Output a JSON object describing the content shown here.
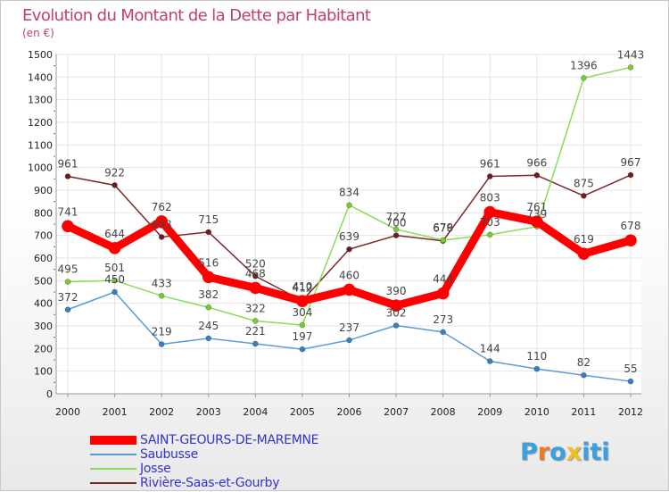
{
  "title": "Evolution du Montant de la Dette par Habitant",
  "subtitle": "(en €)",
  "logo_text": "Proxiti",
  "colors": {
    "title": "#c0406a",
    "text": "#222222",
    "grid": "#e4e4e4",
    "axis": "#999999",
    "legend_text": "#3333cc"
  },
  "chart_data": {
    "type": "line",
    "title": "Evolution du Montant de la Dette par Habitant",
    "subtitle": "(en €)",
    "xlabel": "",
    "ylabel": "",
    "ylim": [
      0,
      1500
    ],
    "yticks": [
      0,
      100,
      200,
      300,
      400,
      500,
      600,
      700,
      800,
      900,
      1000,
      1100,
      1200,
      1300,
      1400,
      1500
    ],
    "grid": true,
    "legend_position": "bottom-left",
    "categories": [
      "2000",
      "2001",
      "2002",
      "2003",
      "2004",
      "2005",
      "2006",
      "2007",
      "2008",
      "2009",
      "2010",
      "2011",
      "2012"
    ],
    "series": [
      {
        "name": "SAINT-GEOURS-DE-MAREMNE",
        "color": "#ff0000",
        "point_color": "#ff0000",
        "width": 9,
        "values": [
          741,
          644,
          762,
          516,
          468,
          410,
          460,
          390,
          444,
          803,
          761,
          619,
          678
        ],
        "labels": [
          "741",
          "644",
          "762",
          "516",
          "468",
          "410",
          "460",
          "390",
          "444",
          "803",
          "761",
          "619",
          "678"
        ]
      },
      {
        "name": "Saubusse",
        "color": "#5b9bd5",
        "point_color": "#3a7fc4",
        "width": 1.5,
        "values": [
          372,
          450,
          219,
          245,
          221,
          197,
          237,
          302,
          273,
          144,
          110,
          82,
          55
        ],
        "labels": [
          "372",
          "450",
          "219",
          "245",
          "221",
          "197",
          "237",
          "302",
          "273",
          "144",
          "110",
          "82",
          "55"
        ]
      },
      {
        "name": "Josse",
        "color": "#88dd55",
        "point_color": "#77cc33",
        "width": 1.5,
        "values": [
          495,
          501,
          433,
          382,
          322,
          304,
          834,
          727,
          679,
          703,
          739,
          1396,
          1443
        ],
        "labels": [
          "495",
          "501",
          "433",
          "382",
          "322",
          "304",
          "834",
          "727",
          "679",
          "703",
          "739",
          "1396",
          "1443"
        ]
      },
      {
        "name": "Rivière-Saas-et-Gourby",
        "color": "#7a2a2a",
        "point_color": "#6b1f1f",
        "width": 1.5,
        "values": [
          961,
          922,
          693,
          715,
          520,
          412,
          639,
          700,
          676,
          961,
          966,
          875,
          967
        ],
        "labels": [
          "961",
          "922",
          "693",
          "715",
          "520",
          "412",
          "639",
          "700",
          "676",
          "961",
          "966",
          "875",
          "967"
        ]
      }
    ]
  }
}
